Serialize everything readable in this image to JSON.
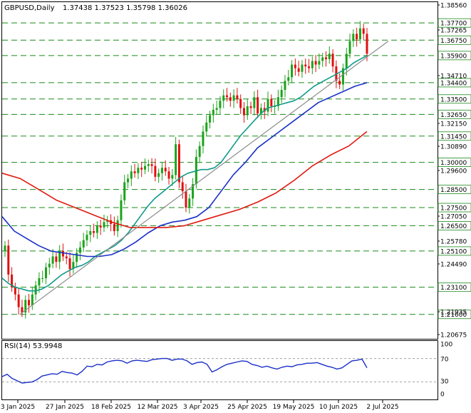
{
  "header": {
    "symbol": "GBPUSD,Daily",
    "ohlc": "1.37438 1.37523 1.35798 1.36026"
  },
  "colors": {
    "bull": "#1aa31a",
    "bear": "#e01010",
    "sma_fast": "#129a8a",
    "sma_mid": "#1a2fc8",
    "sma_slow": "#e01a10",
    "trendline": "#8c8c8c",
    "hline": "#1a8a1a",
    "rsi": "#1a2fc8"
  },
  "chart_data": [
    {
      "type": "candlestick",
      "title": "GBPUSD,Daily",
      "x_tick_labels": [
        "3 Jan 2025",
        "27 Jan 2025",
        "18 Feb 2025",
        "12 Mar 2025",
        "3 Apr 2025",
        "25 Apr 2025",
        "19 May 2025",
        "10 Jun 2025",
        "2 Jul 2025"
      ],
      "ylim": [
        1.2025,
        1.3885
      ],
      "y_tick_labels": [
        "1.38560",
        "1.37265",
        "1.34710",
        "1.32150",
        "1.30890",
        "1.29600",
        "1.27050",
        "1.25780",
        "1.24490",
        "1.21935",
        "1.20675"
      ],
      "horizontal_levels": [
        "1.37700",
        "1.36750",
        "1.35900",
        "1.34400",
        "1.33500",
        "1.32650",
        "1.31450",
        "1.30000",
        "1.28500",
        "1.27500",
        "1.26500",
        "1.25100",
        "1.23100",
        "1.21600"
      ],
      "last_close": 1.36026,
      "close": [
        1.254,
        1.238,
        1.231,
        1.227,
        1.22,
        1.217,
        1.224,
        1.221,
        1.227,
        1.232,
        1.236,
        1.236,
        1.242,
        1.244,
        1.248,
        1.245,
        1.251,
        1.248,
        1.247,
        1.241,
        1.245,
        1.25,
        1.253,
        1.257,
        1.26,
        1.262,
        1.261,
        1.265,
        1.264,
        1.267,
        1.268,
        1.266,
        1.262,
        1.268,
        1.279,
        1.289,
        1.291,
        1.295,
        1.294,
        1.297,
        1.296,
        1.298,
        1.299,
        1.298,
        1.292,
        1.294,
        1.297,
        1.295,
        1.291,
        1.293,
        1.31,
        1.289,
        1.284,
        1.275,
        1.28,
        1.288,
        1.303,
        1.309,
        1.317,
        1.322,
        1.326,
        1.329,
        1.33,
        1.334,
        1.337,
        1.336,
        1.334,
        1.337,
        1.335,
        1.33,
        1.326,
        1.331,
        1.33,
        1.336,
        1.327,
        1.33,
        1.328,
        1.335,
        1.331,
        1.331,
        1.336,
        1.34,
        1.345,
        1.347,
        1.354,
        1.352,
        1.35,
        1.354,
        1.353,
        1.352,
        1.356,
        1.354,
        1.356,
        1.358,
        1.357,
        1.36,
        1.353,
        1.345,
        1.343,
        1.352,
        1.36,
        1.367,
        1.371,
        1.368,
        1.374,
        1.371,
        1.36
      ],
      "series": [
        {
          "name": "",
          "kind": "sma_fast",
          "values": [
            1.236,
            1.233,
            1.231,
            1.23,
            1.229,
            1.229,
            1.23,
            1.232,
            1.235,
            1.238,
            1.24,
            1.242,
            1.243,
            1.245,
            1.248,
            1.25,
            1.252,
            1.254,
            1.257,
            1.261,
            1.266,
            1.271,
            1.276,
            1.28,
            1.283,
            1.286,
            1.289,
            1.292,
            1.294,
            1.295,
            1.296,
            1.296,
            1.297,
            1.3,
            1.305,
            1.31,
            1.315,
            1.319,
            1.323,
            1.327,
            1.33,
            1.331,
            1.332,
            1.333,
            1.334,
            1.336,
            1.339,
            1.342,
            1.344,
            1.346,
            1.348,
            1.35,
            1.352,
            1.355,
            1.357,
            1.359
          ]
        },
        {
          "name": "",
          "kind": "sma_mid",
          "values": [
            1.27,
            1.262,
            1.258,
            1.254,
            1.251,
            1.25,
            1.249,
            1.248,
            1.248,
            1.249,
            1.252,
            1.256,
            1.261,
            1.265,
            1.267,
            1.268,
            1.27,
            1.275,
            1.284,
            1.293,
            1.3,
            1.308,
            1.313,
            1.318,
            1.323,
            1.328,
            1.333,
            1.336,
            1.339,
            1.342,
            1.344
          ]
        },
        {
          "name": "",
          "kind": "sma_slow",
          "values": [
            1.294,
            1.291,
            1.285,
            1.279,
            1.275,
            1.271,
            1.267,
            1.264,
            1.264,
            1.264,
            1.265,
            1.268,
            1.271,
            1.274,
            1.278,
            1.283,
            1.29,
            1.298,
            1.304,
            1.309,
            1.317
          ]
        },
        {
          "name": "",
          "kind": "trendline",
          "values": [
            1.216,
            1.367
          ]
        }
      ]
    },
    {
      "type": "line",
      "title": "RSI(14) 53.9948",
      "ylim": [
        0,
        100
      ],
      "y_tick_labels": [
        "100",
        "70",
        "30",
        "0"
      ],
      "levels": [
        70,
        30
      ],
      "series": [
        {
          "name": "RSI(14)",
          "values": [
            39,
            43,
            36,
            32,
            28,
            29,
            30,
            34,
            40,
            42,
            44,
            43,
            48,
            46,
            45,
            42,
            48,
            57,
            56,
            60,
            59,
            64,
            66,
            67,
            66,
            62,
            66,
            67,
            66,
            65,
            68,
            69,
            70,
            70,
            67,
            69,
            69,
            66,
            60,
            63,
            64,
            60,
            47,
            51,
            56,
            60,
            62,
            64,
            66,
            65,
            60,
            58,
            55,
            57,
            54,
            52,
            55,
            57,
            56,
            59,
            60,
            62,
            62,
            63,
            60,
            57,
            55,
            52,
            54,
            60,
            66,
            67,
            69,
            54
          ]
        }
      ]
    }
  ]
}
